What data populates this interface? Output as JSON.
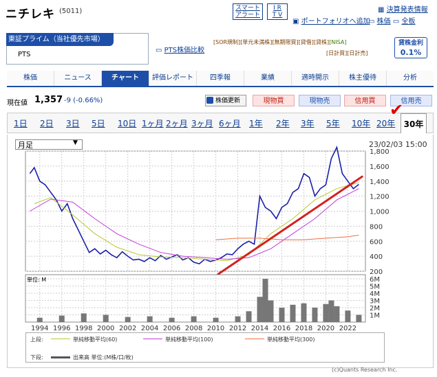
{
  "header": {
    "company": "ニチレキ",
    "code": "(5011)",
    "smart_alert": [
      "スマート",
      "アラート"
    ],
    "ir_tv": [
      "I R",
      "T V"
    ],
    "portfolio_add": "ポートフォリオへ追加",
    "kessan": "決算発表情報",
    "kabuka_link": "株価",
    "zenban_link": "全板",
    "market": "東証プライム（当社優先市場）",
    "pts": "PTS",
    "pts_compare": "PTS株価比較",
    "tags_line1": [
      "[SOR規制]",
      "[単元未満株]",
      "[無期限買]",
      "[貸借]",
      "[貸株]",
      "[NISA]"
    ],
    "tags_line2": [
      "[日計買]",
      "[日計売]"
    ],
    "min_fee_title": "貸株金利",
    "min_fee_value": "0.1%"
  },
  "tabs": [
    "株価",
    "ニュース",
    "チャート",
    "評価レポート",
    "四季報",
    "業績",
    "適時開示",
    "株主優待",
    "分析"
  ],
  "active_tab": "チャート",
  "quote": {
    "label": "現在値",
    "price": "1,357",
    "change": "-9 (-0.66%)",
    "refresh": "株価更新",
    "genbutsu_buy": "現物買",
    "genbutsu_sell": "現物売",
    "shinyo_buy": "信用買",
    "shinyo_sell": "信用売"
  },
  "periods": [
    "1日",
    "2日",
    "3日",
    "5日",
    "10日",
    "1ヶ月",
    "2ヶ月",
    "3ヶ月",
    "6ヶ月",
    "1年",
    "2年",
    "3年",
    "5年",
    "10年",
    "20年",
    "30年"
  ],
  "selected_period": "30年",
  "chart_controls": {
    "bar_type": "月足",
    "datetime": "23/02/03 15:00"
  },
  "legend": {
    "upper_label": "上段:",
    "ma60": "単純移動平均(60)",
    "ma100": "単純移動平均(100)",
    "ma300": "単純移動平均(300)",
    "lower_label": "下段:",
    "volume": "出来高 単位:(M株/口/枚)",
    "ma60_color": "#b7c832",
    "ma100_color": "#c23bd6",
    "ma300_color": "#ee6f40",
    "price_color": "#1a1fa8"
  },
  "copyright": "(c)Quants Research Inc.",
  "chart_data": {
    "type": "line",
    "title": "",
    "x_ticks": [
      "1994",
      "1996",
      "1998",
      "2000",
      "2002",
      "2004",
      "2006",
      "2008",
      "2010",
      "2012",
      "2014",
      "2016",
      "2018",
      "2020",
      "2022"
    ],
    "y_ticks": [
      "1,800",
      "1,600",
      "1,400",
      "1,200",
      "1,000",
      "800",
      "600",
      "400",
      "200"
    ],
    "ylim": [
      200,
      1800
    ],
    "volume_unit": "単位: M",
    "volume_ticks": [
      "6M",
      "5M",
      "4M",
      "3M",
      "2M",
      "1M"
    ],
    "volume_ylim": [
      0,
      6
    ],
    "series": [
      {
        "name": "株価",
        "x": [
          1993.1,
          1993.5,
          1994,
          1994.5,
          1995,
          1995.5,
          1996,
          1996.5,
          1997,
          1997.5,
          1998,
          1998.5,
          1999,
          1999.5,
          2000,
          2000.5,
          2001,
          2001.5,
          2002,
          2002.5,
          2003,
          2003.5,
          2004,
          2004.5,
          2005,
          2005.5,
          2006,
          2006.5,
          2007,
          2007.5,
          2008,
          2008.5,
          2009,
          2009.5,
          2010,
          2010.5,
          2011,
          2011.5,
          2012,
          2012.5,
          2013,
          2013.5,
          2014,
          2014.5,
          2015,
          2015.5,
          2016,
          2016.5,
          2017,
          2017.5,
          2018,
          2018.5,
          2019,
          2019.5,
          2020,
          2020.5,
          2021,
          2021.5,
          2022,
          2022.5,
          2023
        ],
        "values": [
          1500,
          1580,
          1400,
          1350,
          1250,
          1150,
          1000,
          1100,
          900,
          750,
          600,
          450,
          500,
          430,
          480,
          420,
          380,
          460,
          400,
          350,
          360,
          330,
          380,
          340,
          410,
          360,
          390,
          420,
          350,
          380,
          320,
          300,
          360,
          330,
          350,
          380,
          430,
          420,
          500,
          560,
          600,
          560,
          1200,
          1050,
          1000,
          900,
          1050,
          1100,
          1250,
          1300,
          1500,
          1450,
          1200,
          1300,
          1350,
          1700,
          1850,
          1500,
          1400,
          1300,
          1357
        ]
      },
      {
        "name": "単純移動平均(60)",
        "x": [
          1993.5,
          1995,
          1997,
          1999,
          2001,
          2003,
          2005,
          2007,
          2009,
          2011,
          2013,
          2015,
          2017,
          2019,
          2021,
          2023
        ],
        "values": [
          1100,
          1180,
          950,
          700,
          520,
          420,
          390,
          380,
          360,
          340,
          420,
          700,
          900,
          1150,
          1300,
          1380
        ]
      },
      {
        "name": "単純移動平均(100)",
        "x": [
          1993.1,
          1995,
          1997,
          1999,
          2001,
          2003,
          2005,
          2007,
          2009,
          2011,
          2013,
          2015,
          2017,
          2019,
          2021,
          2023
        ],
        "values": [
          1000,
          1160,
          1120,
          900,
          700,
          560,
          450,
          400,
          380,
          360,
          380,
          500,
          700,
          900,
          1150,
          1300
        ]
      },
      {
        "name": "単純移動平均(300)",
        "x": [
          2010,
          2012,
          2014,
          2016,
          2018,
          2020,
          2022,
          2023
        ],
        "values": [
          620,
          640,
          640,
          620,
          620,
          640,
          660,
          680
        ]
      }
    ],
    "volume": {
      "x": [
        1994,
        1996,
        1998,
        2000,
        2002,
        2004,
        2006,
        2008,
        2010,
        2012,
        2013,
        2014,
        2014.5,
        2015,
        2016,
        2017,
        2018,
        2019,
        2020,
        2020.5,
        2021,
        2022,
        2023
      ],
      "values": [
        0.6,
        0.9,
        1.2,
        1.0,
        0.7,
        0.8,
        0.6,
        0.8,
        0.6,
        0.8,
        1.5,
        3.5,
        6.0,
        3.0,
        2.0,
        2.4,
        2.6,
        2.0,
        2.5,
        3.0,
        2.2,
        1.6,
        1.0
      ]
    }
  }
}
